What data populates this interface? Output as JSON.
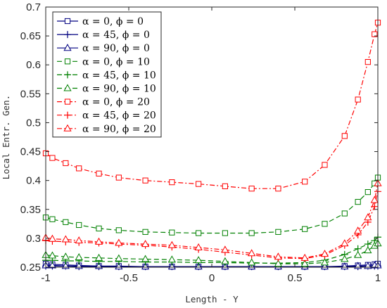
{
  "chart_data": {
    "type": "line",
    "xlabel": "Length - Y",
    "ylabel": "Local Entr. Gen.",
    "xlim": [
      -1,
      1
    ],
    "ylim": [
      0.25,
      0.7
    ],
    "xticks": [
      -1,
      -0.5,
      0,
      0.5,
      1
    ],
    "xtick_labels": [
      "-1",
      "-0.5",
      "0",
      "0.5",
      "1"
    ],
    "yticks": [
      0.25,
      0.3,
      0.35,
      0.4,
      0.45,
      0.5,
      0.55,
      0.6,
      0.65,
      0.7
    ],
    "ytick_labels": [
      "0.25",
      "0.3",
      "0.35",
      "0.4",
      "0.45",
      "0.5",
      "0.55",
      "0.6",
      "0.65",
      "0.7"
    ],
    "grid": false,
    "legend_position": "top-left",
    "series": [
      {
        "name": "α = 0,  ϕ  = 0",
        "color": "#000080",
        "dash": "solid",
        "marker": "square",
        "x": [
          -1,
          -0.96,
          -0.88,
          -0.8,
          -0.68,
          -0.56,
          -0.4,
          -0.24,
          -0.08,
          0.08,
          0.24,
          0.4,
          0.56,
          0.68,
          0.8,
          0.88,
          0.94,
          0.98,
          1
        ],
        "y": [
          0.256,
          0.255,
          0.254,
          0.253,
          0.252,
          0.252,
          0.251,
          0.251,
          0.251,
          0.251,
          0.251,
          0.251,
          0.251,
          0.251,
          0.252,
          0.253,
          0.254,
          0.255,
          0.256
        ]
      },
      {
        "name": "α = 45,  ϕ  = 0",
        "color": "#000080",
        "dash": "solid",
        "marker": "plus",
        "x": [
          -1,
          -0.96,
          -0.88,
          -0.8,
          -0.68,
          -0.56,
          -0.4,
          -0.24,
          -0.08,
          0.08,
          0.24,
          0.4,
          0.56,
          0.68,
          0.8,
          0.88,
          0.94,
          0.98,
          1
        ],
        "y": [
          0.252,
          0.252,
          0.252,
          0.251,
          0.251,
          0.251,
          0.251,
          0.251,
          0.251,
          0.251,
          0.251,
          0.251,
          0.251,
          0.251,
          0.251,
          0.251,
          0.252,
          0.252,
          0.252
        ]
      },
      {
        "name": "α = 90,  ϕ  = 0",
        "color": "#000080",
        "dash": "solid",
        "marker": "triangle",
        "x": [
          -1,
          -0.96,
          -0.88,
          -0.8,
          -0.68,
          -0.56,
          -0.4,
          -0.24,
          -0.08,
          0.08,
          0.24,
          0.4,
          0.56,
          0.68,
          0.8,
          0.88,
          0.94,
          0.98,
          1
        ],
        "y": [
          0.253,
          0.253,
          0.252,
          0.252,
          0.252,
          0.251,
          0.251,
          0.251,
          0.251,
          0.251,
          0.251,
          0.251,
          0.251,
          0.251,
          0.251,
          0.252,
          0.252,
          0.253,
          0.253
        ]
      },
      {
        "name": "α = 0,  ϕ  = 10",
        "color": "#008000",
        "dash": "dashed",
        "marker": "square",
        "x": [
          -1,
          -0.96,
          -0.88,
          -0.8,
          -0.68,
          -0.56,
          -0.4,
          -0.24,
          -0.08,
          0.08,
          0.24,
          0.4,
          0.56,
          0.68,
          0.8,
          0.88,
          0.94,
          0.98,
          1
        ],
        "y": [
          0.336,
          0.333,
          0.328,
          0.323,
          0.317,
          0.314,
          0.311,
          0.31,
          0.309,
          0.309,
          0.309,
          0.311,
          0.316,
          0.325,
          0.343,
          0.363,
          0.38,
          0.395,
          0.405
        ]
      },
      {
        "name": "α = 45,  ϕ  = 10",
        "color": "#008000",
        "dash": "dashed",
        "marker": "plus",
        "x": [
          -1,
          -0.96,
          -0.88,
          -0.8,
          -0.68,
          -0.56,
          -0.4,
          -0.24,
          -0.08,
          0.08,
          0.24,
          0.4,
          0.56,
          0.68,
          0.8,
          0.88,
          0.94,
          0.98,
          1
        ],
        "y": [
          0.262,
          0.262,
          0.261,
          0.261,
          0.26,
          0.26,
          0.259,
          0.259,
          0.258,
          0.258,
          0.257,
          0.257,
          0.258,
          0.262,
          0.272,
          0.282,
          0.29,
          0.296,
          0.302
        ]
      },
      {
        "name": "α = 90,  ϕ  = 10",
        "color": "#008000",
        "dash": "dashed",
        "marker": "triangle",
        "x": [
          -1,
          -0.96,
          -0.88,
          -0.8,
          -0.68,
          -0.56,
          -0.4,
          -0.24,
          -0.08,
          0.08,
          0.24,
          0.4,
          0.56,
          0.68,
          0.8,
          0.88,
          0.94,
          0.98,
          1
        ],
        "y": [
          0.271,
          0.27,
          0.268,
          0.267,
          0.266,
          0.265,
          0.264,
          0.263,
          0.262,
          0.26,
          0.258,
          0.256,
          0.256,
          0.258,
          0.264,
          0.271,
          0.279,
          0.287,
          0.291
        ]
      },
      {
        "name": "α = 0,  ϕ  = 20",
        "color": "#FF0000",
        "dash": "dashdot",
        "marker": "square",
        "x": [
          -1,
          -0.96,
          -0.88,
          -0.8,
          -0.68,
          -0.56,
          -0.4,
          -0.24,
          -0.08,
          0.08,
          0.24,
          0.4,
          0.56,
          0.68,
          0.8,
          0.88,
          0.94,
          0.98,
          1
        ],
        "y": [
          0.447,
          0.439,
          0.43,
          0.421,
          0.412,
          0.405,
          0.4,
          0.397,
          0.394,
          0.39,
          0.386,
          0.386,
          0.398,
          0.427,
          0.477,
          0.54,
          0.605,
          0.653,
          0.673
        ]
      },
      {
        "name": "α = 45,  ϕ  = 20",
        "color": "#FF0000",
        "dash": "dashdot",
        "marker": "plus",
        "x": [
          -1,
          -0.96,
          -0.88,
          -0.8,
          -0.68,
          -0.56,
          -0.4,
          -0.24,
          -0.08,
          0.08,
          0.24,
          0.4,
          0.56,
          0.68,
          0.8,
          0.88,
          0.94,
          0.98,
          1
        ],
        "y": [
          0.296,
          0.295,
          0.294,
          0.293,
          0.292,
          0.29,
          0.288,
          0.285,
          0.281,
          0.276,
          0.271,
          0.266,
          0.265,
          0.271,
          0.288,
          0.306,
          0.328,
          0.355,
          0.381
        ]
      },
      {
        "name": "α = 90,  ϕ  = 20",
        "color": "#FF0000",
        "dash": "dashdot",
        "marker": "triangle",
        "x": [
          -1,
          -0.96,
          -0.88,
          -0.8,
          -0.68,
          -0.56,
          -0.4,
          -0.24,
          -0.08,
          0.08,
          0.24,
          0.4,
          0.56,
          0.68,
          0.8,
          0.88,
          0.94,
          0.98,
          1
        ],
        "y": [
          0.301,
          0.299,
          0.298,
          0.296,
          0.294,
          0.292,
          0.29,
          0.288,
          0.284,
          0.28,
          0.274,
          0.268,
          0.266,
          0.273,
          0.291,
          0.313,
          0.336,
          0.366,
          0.395
        ]
      }
    ]
  }
}
